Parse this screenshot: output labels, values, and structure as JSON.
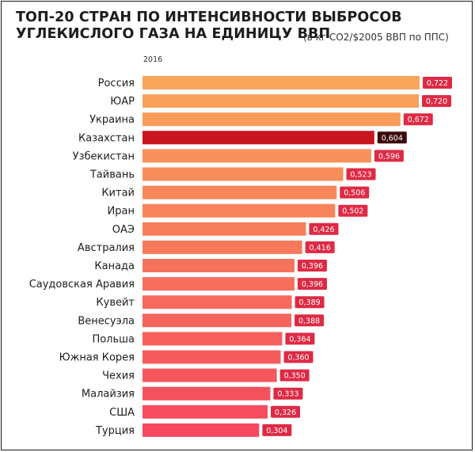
{
  "title_line1": "ТОП-20 СТРАН ПО ИНТЕНСИВНОСТИ ВЫБРОСОВ",
  "title_line2": "УГЛЕКИСЛОГО ГАЗА НА ЕДИНИЦУ ВВП",
  "subtitle": "(в кг CO2/$2005 ВВП по ППС)",
  "colors": {
    "bar_gradient_top": "#f9a55a",
    "bar_gradient_bottom": "#f5485e",
    "highlight_bar": "#c8161e",
    "highlight_label": "#3d0b0c",
    "value_label": "#de2a44"
  },
  "chart_data": {
    "type": "bar",
    "orientation": "horizontal",
    "series_label": "2016",
    "xlim": [
      0,
      0.722
    ],
    "highlight": "Казахстан",
    "categories": [
      "Россия",
      "ЮАР",
      "Украина",
      "Казахстан",
      "Узбекистан",
      "Тайвань",
      "Китай",
      "Иран",
      "ОАЭ",
      "Австралия",
      "Канада",
      "Саудовская Аравия",
      "Кувейт",
      "Венесуэла",
      "Польша",
      "Южная Корея",
      "Чехия",
      "Малайзия",
      "США",
      "Турция"
    ],
    "values": [
      0.722,
      0.72,
      0.672,
      0.604,
      0.596,
      0.523,
      0.506,
      0.502,
      0.426,
      0.416,
      0.396,
      0.396,
      0.389,
      0.388,
      0.364,
      0.36,
      0.35,
      0.333,
      0.326,
      0.304
    ],
    "value_labels": [
      "0,722",
      "0,720",
      "0,672",
      "0,604",
      "0,596",
      "0,523",
      "0,506",
      "0,502",
      "0,426",
      "0,416",
      "0,396",
      "0,396",
      "0,389",
      "0,388",
      "0,364",
      "0,360",
      "0,350",
      "0,333",
      "0,326",
      "0,304"
    ]
  }
}
